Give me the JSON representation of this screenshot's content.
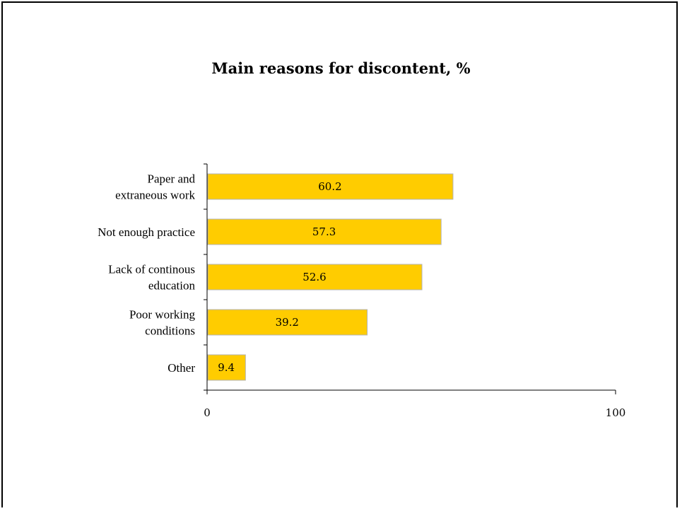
{
  "chart_data": {
    "type": "bar",
    "orientation": "horizontal",
    "title": "Main reasons for discontent, %",
    "categories": [
      [
        "Paper and",
        "extraneous work"
      ],
      [
        "Not enough practice"
      ],
      [
        "Lack of continous",
        "education"
      ],
      [
        "Poor working",
        "conditions"
      ],
      [
        "Other"
      ]
    ],
    "values": [
      60.2,
      57.3,
      52.6,
      39.2,
      9.4
    ],
    "value_labels": [
      "60.2",
      "57.3",
      "52.6",
      "39.2",
      "9.4"
    ],
    "xlim": [
      0,
      100
    ],
    "xticks": [
      "0",
      "100"
    ],
    "bar_color": "#FFCC00",
    "bar_border_color": "#B3B3B3",
    "grid": false,
    "legend": "none"
  }
}
